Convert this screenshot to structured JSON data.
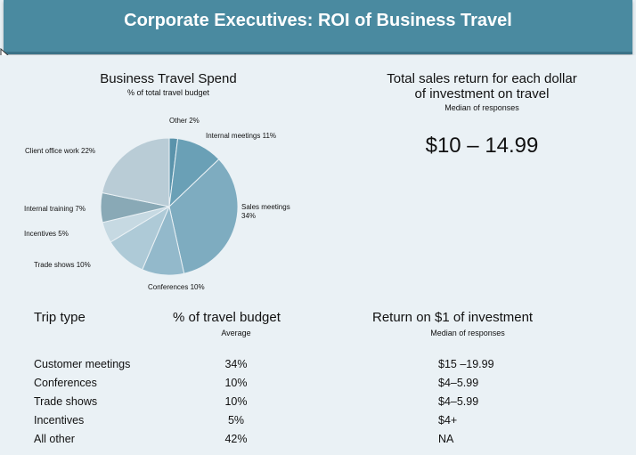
{
  "header": {
    "title": "Corporate Executives: ROI of Business Travel"
  },
  "pie": {
    "title": "Business Travel Spend",
    "subtitle": "% of total travel budget"
  },
  "roi": {
    "title_line1": "Total sales return for each dollar",
    "title_line2": "of investment on travel",
    "subtitle": "Median of responses",
    "value": "$10 – 14.99"
  },
  "chart_data": {
    "type": "pie",
    "title": "Business Travel Spend",
    "subtitle": "% of total travel budget",
    "slices": [
      {
        "label": "Other 2%",
        "value": 2,
        "color": "#5a93ab"
      },
      {
        "label": "Internal meetings 11%",
        "value": 11,
        "color": "#6aa0b6"
      },
      {
        "label": "Sales meetings 34%",
        "value": 34,
        "color": "#7eacc0"
      },
      {
        "label": "Conferences 10%",
        "value": 10,
        "color": "#93b9cb"
      },
      {
        "label": "Trade shows 10%",
        "value": 10,
        "color": "#aecad7"
      },
      {
        "label": "Incentives 5%",
        "value": 5,
        "color": "#c6d9e2"
      },
      {
        "label": "Internal training 7%",
        "value": 7,
        "color": "#89a9b6"
      },
      {
        "label": "Client office work 22%",
        "value": 22,
        "color": "#b9ccd6"
      }
    ]
  },
  "table": {
    "headers": {
      "trip_type": "Trip type",
      "budget": "% of travel budget",
      "budget_sub": "Average",
      "return": "Return on $1 of investment",
      "return_sub": "Median of responses"
    },
    "rows": [
      {
        "trip": "Customer meetings",
        "budget": "34%",
        "return": "$15 –19.99"
      },
      {
        "trip": "Conferences",
        "budget": "10%",
        "return": "$4–5.99"
      },
      {
        "trip": "Trade shows",
        "budget": "10%",
        "return": "$4–5.99"
      },
      {
        "trip": "Incentives",
        "budget": "5%",
        "return": "$4+"
      },
      {
        "trip": "All other",
        "budget": "42%",
        "return": "NA"
      }
    ]
  }
}
